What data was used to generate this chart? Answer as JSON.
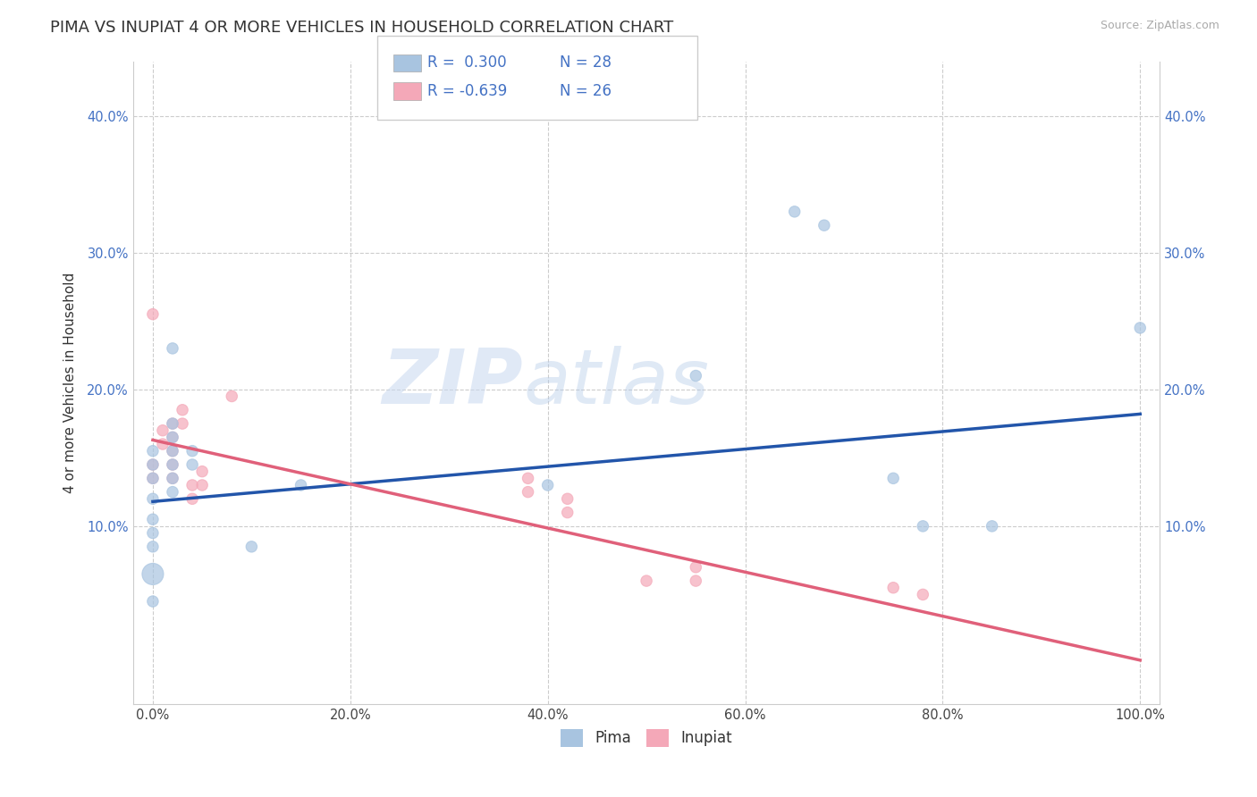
{
  "title": "PIMA VS INUPIAT 4 OR MORE VEHICLES IN HOUSEHOLD CORRELATION CHART",
  "source_text": "Source: ZipAtlas.com",
  "ylabel": "4 or more Vehicles in Household",
  "xlim": [
    -0.02,
    1.02
  ],
  "ylim": [
    -0.03,
    0.44
  ],
  "xtick_labels": [
    "0.0%",
    "20.0%",
    "40.0%",
    "60.0%",
    "80.0%",
    "100.0%"
  ],
  "xtick_values": [
    0.0,
    0.2,
    0.4,
    0.6,
    0.8,
    1.0
  ],
  "ytick_labels": [
    "10.0%",
    "20.0%",
    "30.0%",
    "40.0%"
  ],
  "ytick_values": [
    0.1,
    0.2,
    0.3,
    0.4
  ],
  "grid_color": "#cccccc",
  "legend_R1": "R =  0.300",
  "legend_N1": "N = 28",
  "legend_R2": "R = -0.639",
  "legend_N2": "N = 26",
  "pima_color": "#a8c4e0",
  "inupiat_color": "#f4a8b8",
  "pima_line_color": "#2255aa",
  "inupiat_line_color": "#e0607a",
  "watermark_zip": "ZIP",
  "watermark_atlas": "atlas",
  "pima_points": [
    [
      0.0,
      0.155
    ],
    [
      0.0,
      0.145
    ],
    [
      0.0,
      0.135
    ],
    [
      0.0,
      0.12
    ],
    [
      0.0,
      0.105
    ],
    [
      0.0,
      0.095
    ],
    [
      0.0,
      0.085
    ],
    [
      0.0,
      0.065
    ],
    [
      0.0,
      0.045
    ],
    [
      0.02,
      0.23
    ],
    [
      0.02,
      0.175
    ],
    [
      0.02,
      0.165
    ],
    [
      0.02,
      0.155
    ],
    [
      0.02,
      0.145
    ],
    [
      0.02,
      0.135
    ],
    [
      0.02,
      0.125
    ],
    [
      0.04,
      0.155
    ],
    [
      0.04,
      0.145
    ],
    [
      0.1,
      0.085
    ],
    [
      0.15,
      0.13
    ],
    [
      0.4,
      0.13
    ],
    [
      0.55,
      0.21
    ],
    [
      0.65,
      0.33
    ],
    [
      0.68,
      0.32
    ],
    [
      0.75,
      0.135
    ],
    [
      0.78,
      0.1
    ],
    [
      0.85,
      0.1
    ],
    [
      1.0,
      0.245
    ]
  ],
  "pima_sizes": [
    80,
    80,
    80,
    80,
    80,
    80,
    80,
    300,
    80,
    80,
    80,
    80,
    80,
    80,
    80,
    80,
    80,
    80,
    80,
    80,
    80,
    80,
    80,
    80,
    80,
    80,
    80,
    80
  ],
  "inupiat_points": [
    [
      0.0,
      0.255
    ],
    [
      0.0,
      0.145
    ],
    [
      0.0,
      0.135
    ],
    [
      0.01,
      0.17
    ],
    [
      0.01,
      0.16
    ],
    [
      0.02,
      0.175
    ],
    [
      0.02,
      0.165
    ],
    [
      0.02,
      0.155
    ],
    [
      0.02,
      0.145
    ],
    [
      0.02,
      0.135
    ],
    [
      0.03,
      0.185
    ],
    [
      0.03,
      0.175
    ],
    [
      0.04,
      0.13
    ],
    [
      0.04,
      0.12
    ],
    [
      0.05,
      0.14
    ],
    [
      0.05,
      0.13
    ],
    [
      0.08,
      0.195
    ],
    [
      0.38,
      0.135
    ],
    [
      0.38,
      0.125
    ],
    [
      0.42,
      0.12
    ],
    [
      0.42,
      0.11
    ],
    [
      0.5,
      0.06
    ],
    [
      0.55,
      0.07
    ],
    [
      0.55,
      0.06
    ],
    [
      0.75,
      0.055
    ],
    [
      0.78,
      0.05
    ]
  ],
  "inupiat_sizes": [
    80,
    80,
    80,
    80,
    80,
    80,
    80,
    80,
    80,
    80,
    80,
    80,
    80,
    80,
    80,
    80,
    80,
    80,
    80,
    80,
    80,
    80,
    80,
    80,
    80,
    80
  ],
  "pima_line": [
    [
      0.0,
      0.118
    ],
    [
      1.0,
      0.182
    ]
  ],
  "inupiat_line": [
    [
      0.0,
      0.163
    ],
    [
      1.0,
      0.002
    ]
  ],
  "background_color": "#ffffff",
  "title_fontsize": 13,
  "axis_label_fontsize": 11,
  "tick_fontsize": 10.5
}
